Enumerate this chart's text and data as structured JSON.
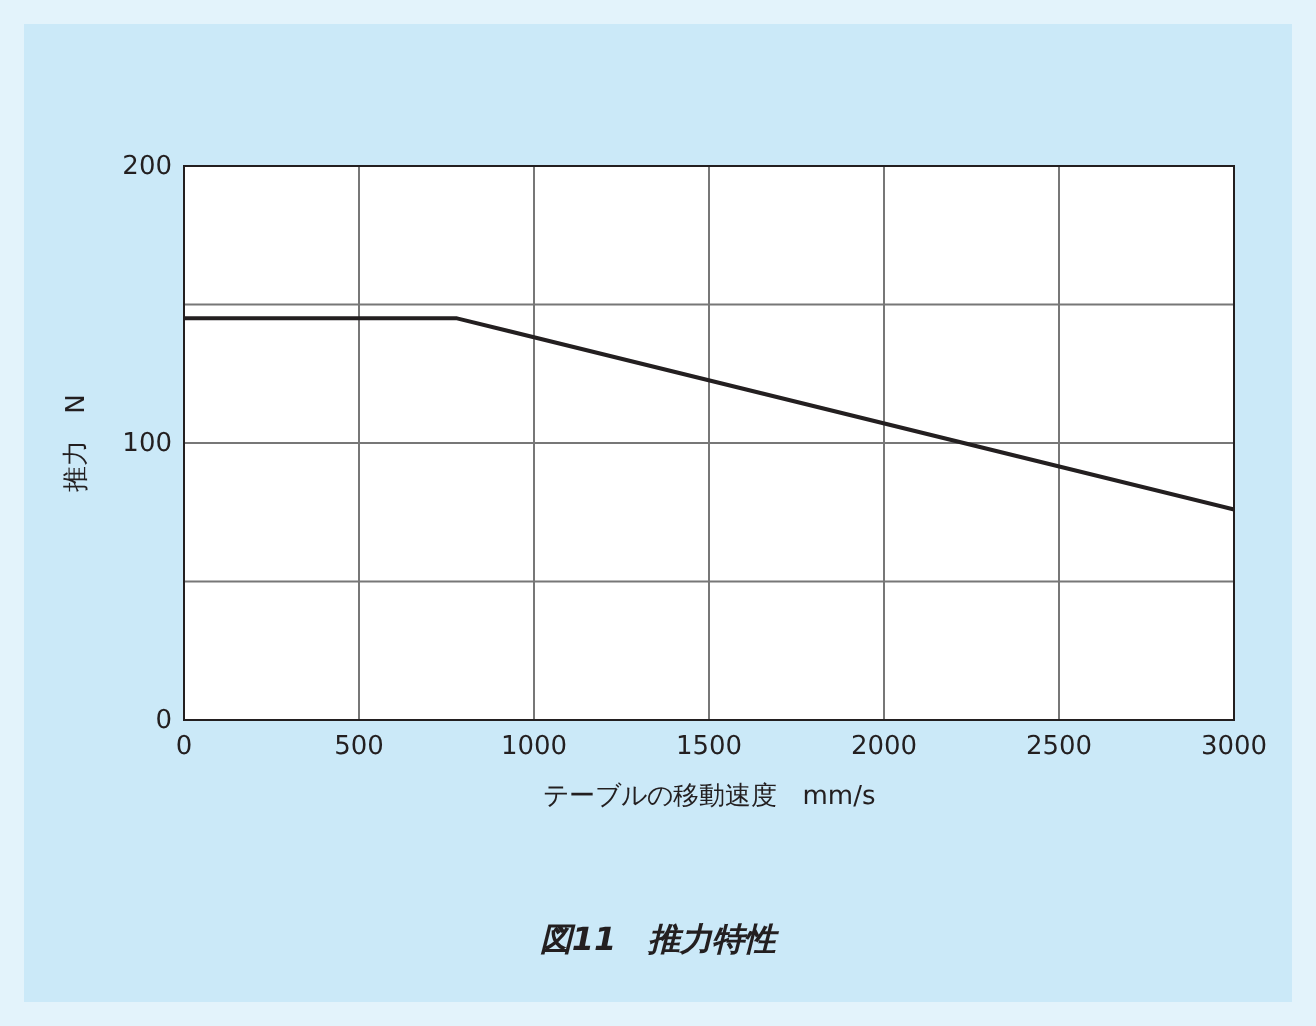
{
  "chart_data": {
    "type": "line",
    "title": "図11　推力特性",
    "xlabel": "テーブルの移動速度　mm/s",
    "ylabel": "推力　N",
    "x": [
      0,
      780,
      3000
    ],
    "series": [
      {
        "color": "#231f20",
        "values": [
          145,
          145,
          76
        ]
      }
    ],
    "xlim": [
      0,
      3000
    ],
    "xticks": [
      0,
      500,
      1000,
      1500,
      2000,
      2500,
      3000
    ],
    "ylim": [
      0,
      200
    ],
    "yticks": [
      0,
      {
        "value": 50,
        "label": null
      },
      100,
      {
        "value": 150,
        "label": null
      },
      200
    ],
    "grid": true,
    "marker": "none",
    "line_style": "solid"
  }
}
